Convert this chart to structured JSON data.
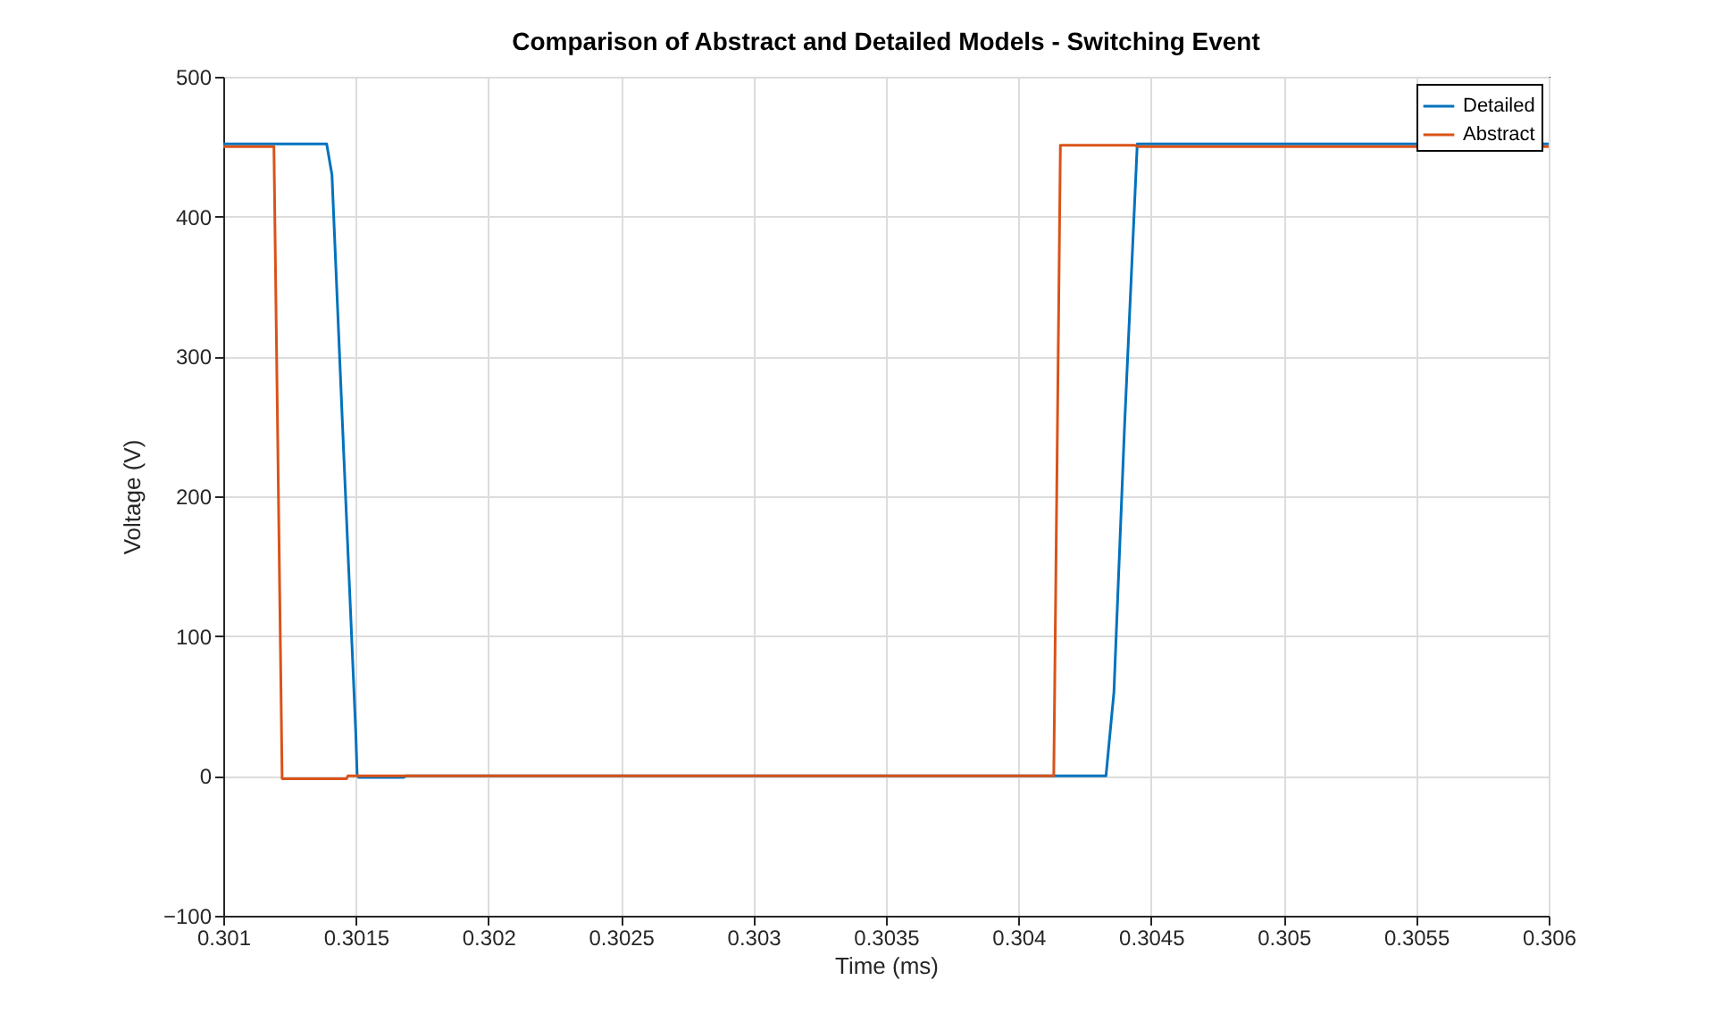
{
  "chart_data": {
    "type": "line",
    "title": "Comparison of Abstract and Detailed Models - Switching Event",
    "xlabel": "Time (ms)",
    "ylabel": "Voltage (V)",
    "xlim": [
      0.301,
      0.306
    ],
    "ylim": [
      -100,
      500
    ],
    "xticks": [
      0.301,
      0.3015,
      0.302,
      0.3025,
      0.303,
      0.3035,
      0.304,
      0.3045,
      0.305,
      0.3055,
      0.306
    ],
    "yticks": [
      -100,
      0,
      100,
      200,
      300,
      400,
      500
    ],
    "grid": true,
    "legend": "top right",
    "line_style": "solid",
    "marker": "none",
    "series": [
      {
        "name": "Detailed",
        "color": "#0072bd",
        "x": [
          0.301,
          0.30139,
          0.30141,
          0.30145,
          0.3015,
          0.301505,
          0.30151,
          0.30168,
          0.30169,
          0.30433,
          0.30436,
          0.3044,
          0.304448,
          0.306
        ],
        "values": [
          452,
          452,
          430,
          250,
          30,
          0,
          -1,
          -1,
          0,
          0,
          60,
          250,
          452,
          452
        ]
      },
      {
        "name": "Abstract",
        "color": "#d95319",
        "x": [
          0.301,
          0.301191,
          0.301222,
          0.301465,
          0.30147,
          0.304133,
          0.304158,
          0.30444,
          0.30445,
          0.306
        ],
        "values": [
          450,
          450,
          -2,
          -2,
          0,
          0,
          451,
          451,
          450,
          450
        ]
      }
    ]
  }
}
